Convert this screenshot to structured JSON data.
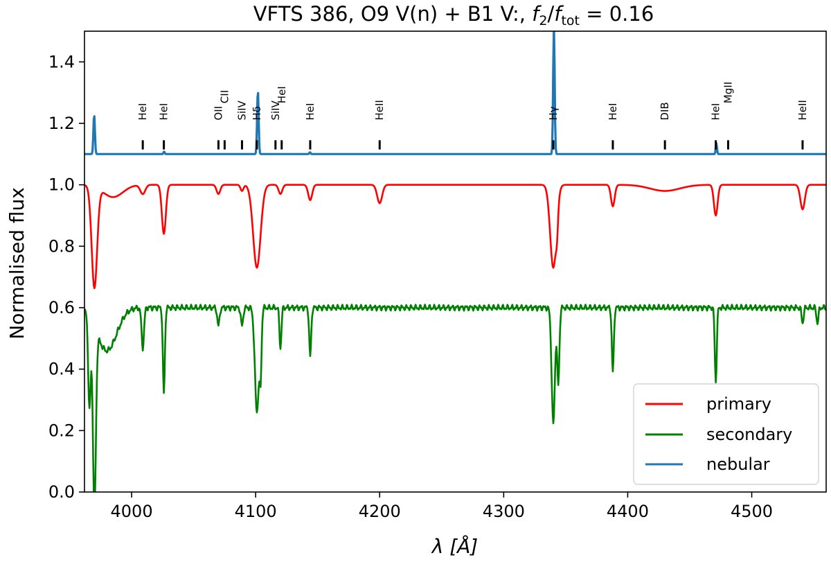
{
  "chart_data": {
    "type": "line",
    "title": "VFTS 386, O9 V(n) + B1 V:, f2/ftot = 0.16",
    "title_parts": {
      "prefix": "VFTS 386, O9 V(n) + B1 V:, ",
      "f": "f",
      "sub2": "2",
      "slash": "/",
      "sub_tot": "tot",
      "suffix": " = 0.16"
    },
    "xlabel": "λ [Å]",
    "ylabel": "Normalised flux",
    "xlim": [
      3962,
      4560
    ],
    "ylim": [
      0.0,
      1.5
    ],
    "xticks": [
      {
        "value": 4000,
        "label": "4000"
      },
      {
        "value": 4100,
        "label": "4100"
      },
      {
        "value": 4200,
        "label": "4200"
      },
      {
        "value": 4300,
        "label": "4300"
      },
      {
        "value": 4400,
        "label": "4400"
      },
      {
        "value": 4500,
        "label": "4500"
      }
    ],
    "yticks": [
      {
        "value": 0.0,
        "label": "0.0"
      },
      {
        "value": 0.2,
        "label": "0.2"
      },
      {
        "value": 0.4,
        "label": "0.4"
      },
      {
        "value": 0.6,
        "label": "0.6"
      },
      {
        "value": 0.8,
        "label": "0.8"
      },
      {
        "value": 1.0,
        "label": "1.0"
      },
      {
        "value": 1.2,
        "label": "1.2"
      },
      {
        "value": 1.4,
        "label": "1.4"
      }
    ],
    "legend_position": "bottom-right",
    "series": [
      {
        "name": "primary",
        "color": "#ff0000",
        "continuum": 1.0,
        "start": {
          "x": 3962,
          "y": 0.975
        },
        "lines": [
          {
            "x": 3970,
            "depth": 0.33,
            "width": 2.2
          },
          {
            "x": 3985,
            "depth": 0.04,
            "width": 8
          },
          {
            "x": 4009,
            "depth": 0.03,
            "width": 2
          },
          {
            "x": 4026,
            "depth": 0.16,
            "width": 1.6
          },
          {
            "x": 4070,
            "depth": 0.03,
            "width": 1.5
          },
          {
            "x": 4089,
            "depth": 0.02,
            "width": 1.2
          },
          {
            "x": 4101,
            "depth": 0.27,
            "width": 3
          },
          {
            "x": 4120,
            "depth": 0.03,
            "width": 1.5
          },
          {
            "x": 4144,
            "depth": 0.05,
            "width": 1.6
          },
          {
            "x": 4200,
            "depth": 0.06,
            "width": 2
          },
          {
            "x": 4340,
            "depth": 0.27,
            "width": 2.5
          },
          {
            "x": 4343,
            "depth": 0.06,
            "width": 0.8
          },
          {
            "x": 4388,
            "depth": 0.07,
            "width": 1.5
          },
          {
            "x": 4430,
            "depth": 0.02,
            "width": 12
          },
          {
            "x": 4471,
            "depth": 0.1,
            "width": 1.5
          },
          {
            "x": 4541,
            "depth": 0.08,
            "width": 1.8
          }
        ]
      },
      {
        "name": "secondary",
        "color": "#008000",
        "continuum": 0.6,
        "start": {
          "x": 3962,
          "y": 0.54
        },
        "lines": [
          {
            "x": 3966,
            "depth": 0.3,
            "width": 1.0
          },
          {
            "x": 3970,
            "depth": 0.6,
            "width": 1.2
          },
          {
            "x": 3980,
            "depth": 0.14,
            "width": 8
          },
          {
            "x": 4009,
            "depth": 0.13,
            "width": 1.0
          },
          {
            "x": 4026,
            "depth": 0.28,
            "width": 0.8
          },
          {
            "x": 4070,
            "depth": 0.06,
            "width": 0.9
          },
          {
            "x": 4089,
            "depth": 0.06,
            "width": 0.9
          },
          {
            "x": 4101,
            "depth": 0.34,
            "width": 1.6
          },
          {
            "x": 4104,
            "depth": 0.2,
            "width": 0.8
          },
          {
            "x": 4120,
            "depth": 0.13,
            "width": 0.8
          },
          {
            "x": 4144,
            "depth": 0.16,
            "width": 0.8
          },
          {
            "x": 4340,
            "depth": 0.38,
            "width": 1.3
          },
          {
            "x": 4344,
            "depth": 0.25,
            "width": 0.9
          },
          {
            "x": 4388,
            "depth": 0.21,
            "width": 0.8
          },
          {
            "x": 4471,
            "depth": 0.24,
            "width": 0.8
          },
          {
            "x": 4541,
            "depth": 0.05,
            "width": 0.8
          },
          {
            "x": 4553,
            "depth": 0.05,
            "width": 0.8
          }
        ]
      },
      {
        "name": "nebular",
        "color": "#1f77b4",
        "continuum": 1.1,
        "lines": [
          {
            "x": 3969.8,
            "height": 0.13,
            "width": 0.6
          },
          {
            "x": 4026.2,
            "height": 0.008,
            "width": 0.5
          },
          {
            "x": 4101.8,
            "height": 0.21,
            "width": 0.6
          },
          {
            "x": 4143.8,
            "height": 0.006,
            "width": 0.5
          },
          {
            "x": 4340.5,
            "height": 0.42,
            "width": 0.6
          },
          {
            "x": 4471.5,
            "height": 0.035,
            "width": 0.5
          }
        ]
      }
    ],
    "line_ids": [
      {
        "x": 4009,
        "label": "HeI",
        "row": "low"
      },
      {
        "x": 4026,
        "label": "HeI",
        "row": "low"
      },
      {
        "x": 4070,
        "label": "OII",
        "row": "low"
      },
      {
        "x": 4075,
        "label": "CII",
        "row": "high"
      },
      {
        "x": 4089,
        "label": "SiIV",
        "row": "low"
      },
      {
        "x": 4101,
        "label": "Hδ",
        "row": "low"
      },
      {
        "x": 4116,
        "label": "SiIV",
        "row": "low"
      },
      {
        "x": 4121,
        "label": "HeI",
        "row": "high"
      },
      {
        "x": 4144,
        "label": "HeI",
        "row": "low"
      },
      {
        "x": 4200,
        "label": "HeII",
        "row": "low"
      },
      {
        "x": 4340,
        "label": "Hγ",
        "row": "low"
      },
      {
        "x": 4388,
        "label": "HeI",
        "row": "low"
      },
      {
        "x": 4430,
        "label": "DIB",
        "row": "low"
      },
      {
        "x": 4471,
        "label": "HeI",
        "row": "low"
      },
      {
        "x": 4481,
        "label": "MgII",
        "row": "high"
      },
      {
        "x": 4541,
        "label": "HeII",
        "row": "low"
      }
    ],
    "line_id_tick_range": [
      1.115,
      1.145
    ]
  }
}
